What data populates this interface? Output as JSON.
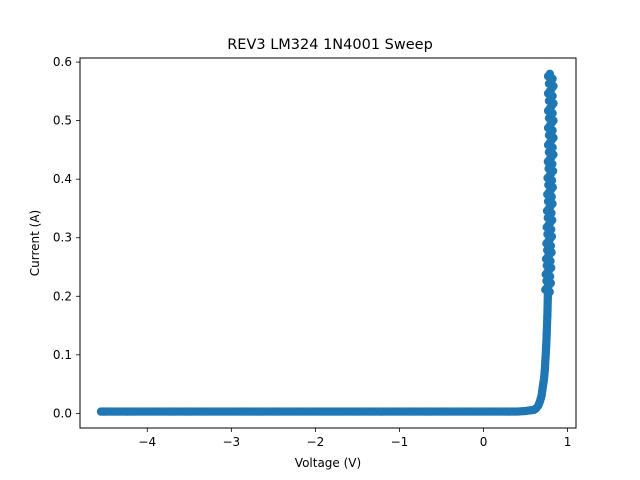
{
  "chart_data": {
    "type": "scatter",
    "title": "REV3 LM324 1N4001 Sweep",
    "xlabel": "Voltage (V)",
    "ylabel": "Current (A)",
    "xlim": [
      -4.8,
      1.1
    ],
    "ylim": [
      -0.025,
      0.607
    ],
    "xticks": [
      -4,
      -3,
      -2,
      -1,
      0,
      1
    ],
    "xtick_labels": [
      "−4",
      "−3",
      "−2",
      "−1",
      "0",
      "1"
    ],
    "yticks": [
      0.0,
      0.1,
      0.2,
      0.3,
      0.4,
      0.5,
      0.6
    ],
    "ytick_labels": [
      "0.0",
      "0.1",
      "0.2",
      "0.3",
      "0.4",
      "0.5",
      "0.6"
    ],
    "grid": false,
    "legend": "none",
    "marker_color": "#1f77b4",
    "series": [
      {
        "x_start": -4.55,
        "x_end": 0.8,
        "points": [
          [
            -4.55,
            0.003
          ],
          [
            -4.53,
            0.003
          ],
          [
            -4.5,
            0.003
          ],
          [
            -4.45,
            0.003
          ],
          [
            -4.4,
            0.003
          ],
          [
            -4.3,
            0.003
          ],
          [
            -4.2,
            0.003
          ],
          [
            -4.0,
            0.003
          ],
          [
            -3.8,
            0.003
          ],
          [
            -3.5,
            0.003
          ],
          [
            -3.2,
            0.003
          ],
          [
            -3.0,
            0.003
          ],
          [
            -2.7,
            0.003
          ],
          [
            -2.4,
            0.003
          ],
          [
            -2.0,
            0.003
          ],
          [
            -1.7,
            0.003
          ],
          [
            -1.4,
            0.003
          ],
          [
            -1.0,
            0.003
          ],
          [
            -0.7,
            0.003
          ],
          [
            -0.4,
            0.003
          ],
          [
            0.0,
            0.003
          ],
          [
            0.2,
            0.003
          ],
          [
            0.4,
            0.003
          ],
          [
            0.5,
            0.004
          ],
          [
            0.55,
            0.005
          ],
          [
            0.6,
            0.006
          ],
          [
            0.63,
            0.009
          ],
          [
            0.65,
            0.013
          ],
          [
            0.67,
            0.02
          ],
          [
            0.69,
            0.03
          ],
          [
            0.7,
            0.04
          ],
          [
            0.71,
            0.05
          ],
          [
            0.72,
            0.06
          ],
          [
            0.73,
            0.075
          ],
          [
            0.735,
            0.09
          ],
          [
            0.74,
            0.1
          ],
          [
            0.745,
            0.115
          ],
          [
            0.75,
            0.13
          ],
          [
            0.755,
            0.15
          ],
          [
            0.76,
            0.17
          ],
          [
            0.765,
            0.2
          ],
          [
            0.77,
            0.23
          ],
          [
            0.775,
            0.26
          ],
          [
            0.78,
            0.29
          ],
          [
            0.785,
            0.33
          ],
          [
            0.79,
            0.37
          ],
          [
            0.795,
            0.41
          ],
          [
            0.8,
            0.45
          ],
          [
            0.8,
            0.5
          ],
          [
            0.8,
            0.58
          ]
        ]
      }
    ]
  }
}
